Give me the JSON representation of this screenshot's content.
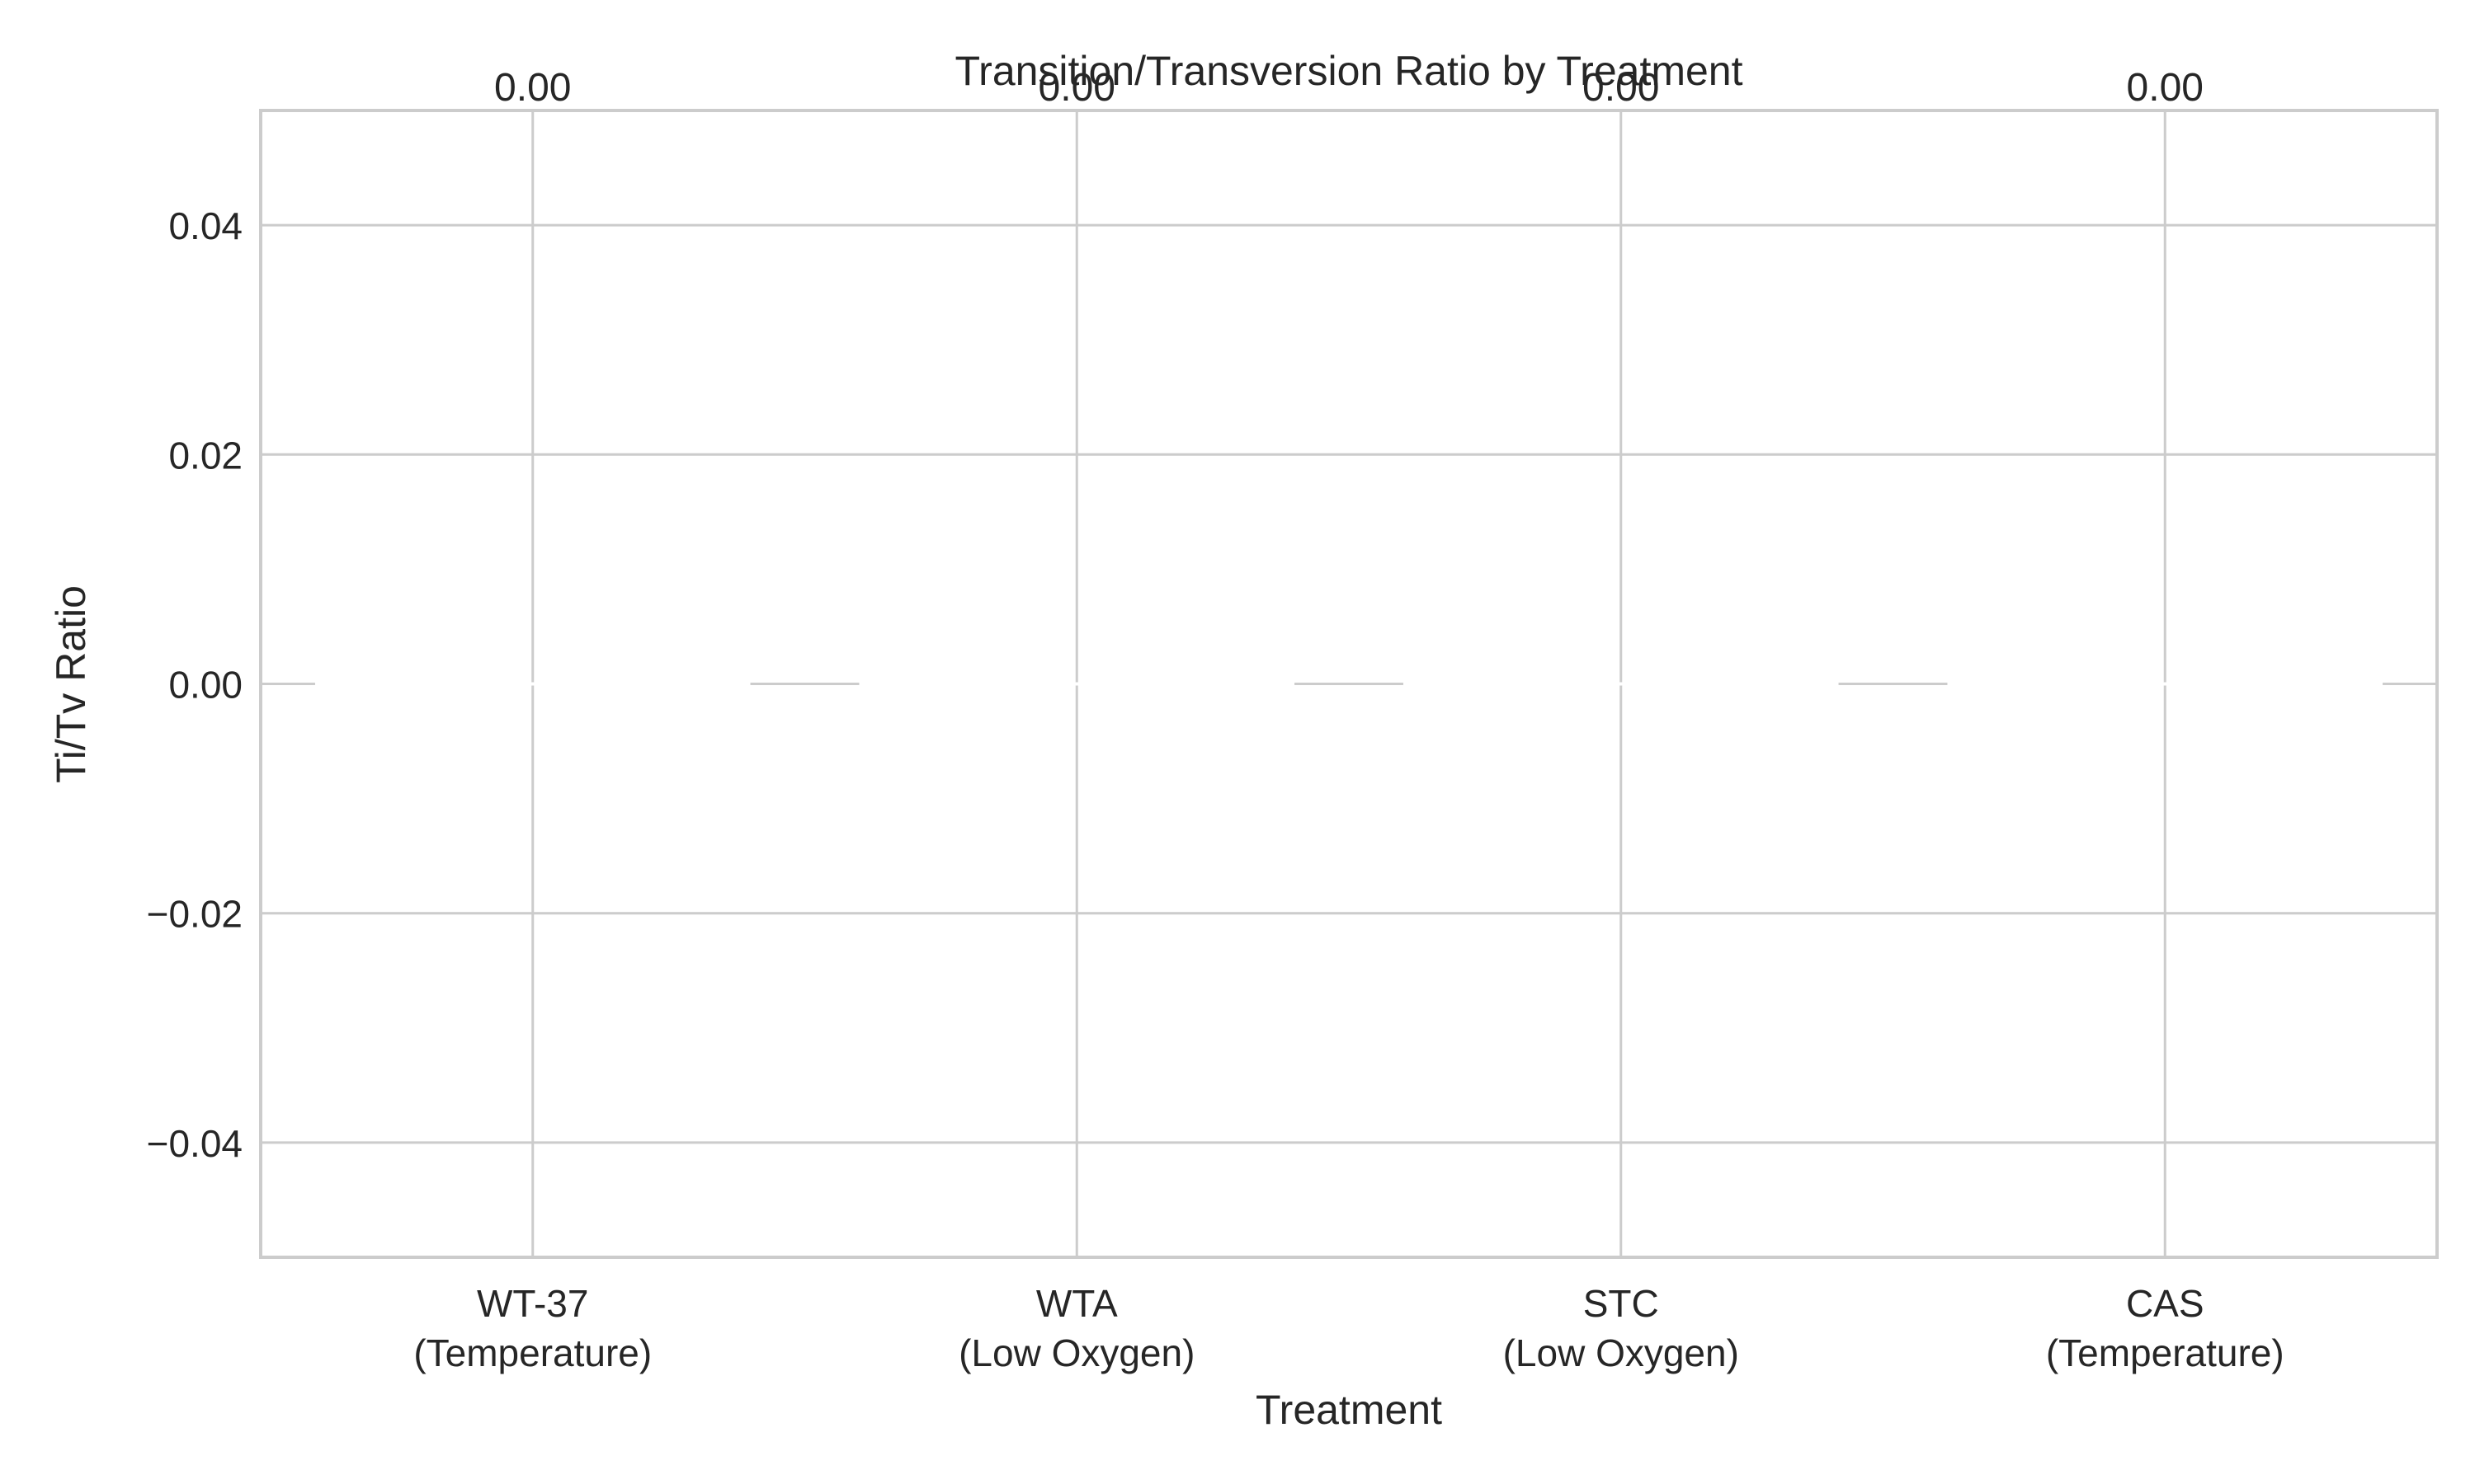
{
  "chart_data": {
    "type": "bar",
    "title": "Transition/Transversion Ratio by Treatment",
    "xlabel": "Treatment",
    "ylabel": "Ti/Tv Ratio",
    "categories": [
      [
        "WT-37",
        "(Temperature)"
      ],
      [
        "WTA",
        "(Low Oxygen)"
      ],
      [
        "STC",
        "(Low Oxygen)"
      ],
      [
        "CAS",
        "(Temperature)"
      ]
    ],
    "values": [
      0.0,
      0.0,
      0.0,
      0.0
    ],
    "value_labels": [
      "0.00",
      "0.00",
      "0.00",
      "0.00"
    ],
    "ylim": [
      -0.05,
      0.05
    ],
    "yticks": [
      -0.04,
      -0.02,
      0.0,
      0.02,
      0.04
    ],
    "ytick_labels": [
      "−0.04",
      "−0.02",
      "0.00",
      "0.02",
      "0.04"
    ],
    "grid": true,
    "legend": "none",
    "colors": {
      "grid": "#cccccc",
      "spine": "#cccccc",
      "bar": "#ffffff",
      "text": "#262626"
    }
  }
}
